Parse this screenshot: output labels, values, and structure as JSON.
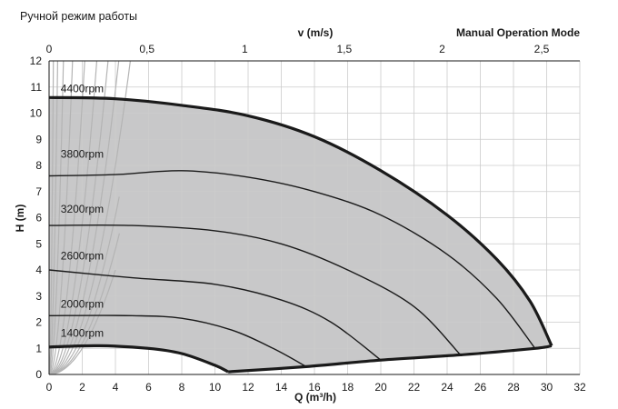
{
  "page": {
    "caption_ru": "Ручной режим работы",
    "caption_en": "Manual Operation Mode"
  },
  "chart_data": {
    "type": "line",
    "xlabel": "Q (m³/h)",
    "ylabel": "H (m)",
    "top_axis_label": "v (m/s)",
    "xlim": [
      0,
      32
    ],
    "ylim": [
      0,
      12
    ],
    "x_ticks": [
      "0",
      "2",
      "4",
      "6",
      "8",
      "10",
      "12",
      "14",
      "16",
      "18",
      "20",
      "22",
      "24",
      "26",
      "28",
      "30",
      "32"
    ],
    "y_ticks": [
      "0",
      "1",
      "2",
      "3",
      "4",
      "5",
      "6",
      "7",
      "8",
      "9",
      "10",
      "11",
      "12"
    ],
    "top_ticks": [
      {
        "label": "0",
        "q": 0
      },
      {
        "label": "0,5",
        "q": 5.9
      },
      {
        "label": "1",
        "q": 11.8
      },
      {
        "label": "1,5",
        "q": 17.8
      },
      {
        "label": "2",
        "q": 23.7
      },
      {
        "label": "2,5",
        "q": 29.7
      }
    ],
    "grid": true,
    "colors": {
      "envelope_fill": "#c8c8c9",
      "curve": "#1a1a1a",
      "system_curve": "#b4b4b4",
      "grid": "#cccccc"
    },
    "series": [
      {
        "name": "4400rpm",
        "label_at": [
          0.7,
          10.8
        ],
        "points": [
          [
            0,
            10.6
          ],
          [
            4,
            10.55
          ],
          [
            8,
            10.3
          ],
          [
            12,
            9.9
          ],
          [
            16,
            9.1
          ],
          [
            20,
            7.8
          ],
          [
            24,
            6.1
          ],
          [
            27,
            4.4
          ],
          [
            29,
            2.8
          ],
          [
            30.3,
            1.1
          ]
        ]
      },
      {
        "name": "3800rpm",
        "label_at": [
          0.7,
          8.3
        ],
        "points": [
          [
            0,
            7.6
          ],
          [
            4,
            7.65
          ],
          [
            8,
            7.8
          ],
          [
            12,
            7.55
          ],
          [
            16,
            7.0
          ],
          [
            20,
            6.1
          ],
          [
            24,
            4.6
          ],
          [
            27,
            2.9
          ],
          [
            29.3,
            1.0
          ]
        ]
      },
      {
        "name": "3200rpm",
        "label_at": [
          0.7,
          6.2
        ],
        "points": [
          [
            0,
            5.7
          ],
          [
            5,
            5.7
          ],
          [
            10,
            5.5
          ],
          [
            14,
            5.0
          ],
          [
            18,
            4.0
          ],
          [
            22,
            2.6
          ],
          [
            24.8,
            0.75
          ]
        ]
      },
      {
        "name": "2600rpm",
        "label_at": [
          0.7,
          4.4
        ],
        "points": [
          [
            0,
            4.0
          ],
          [
            5,
            3.7
          ],
          [
            10,
            3.45
          ],
          [
            14,
            2.85
          ],
          [
            17,
            2.0
          ],
          [
            20,
            0.55
          ]
        ]
      },
      {
        "name": "2000rpm",
        "label_at": [
          0.7,
          2.55
        ],
        "points": [
          [
            0,
            2.25
          ],
          [
            5,
            2.25
          ],
          [
            8,
            2.15
          ],
          [
            11,
            1.7
          ],
          [
            13.5,
            1.0
          ],
          [
            15.5,
            0.3
          ]
        ]
      },
      {
        "name": "1400rpm",
        "label_at": [
          0.7,
          1.45
        ],
        "points": [
          [
            0,
            1.05
          ],
          [
            3,
            1.1
          ],
          [
            6,
            1.0
          ],
          [
            8,
            0.8
          ],
          [
            10,
            0.35
          ],
          [
            10.8,
            0.1
          ]
        ]
      }
    ],
    "min_curve": [
      [
        10.8,
        0.1
      ],
      [
        15.5,
        0.3
      ],
      [
        20,
        0.55
      ],
      [
        24.8,
        0.75
      ],
      [
        29.3,
        1.0
      ],
      [
        30.3,
        1.1
      ]
    ],
    "system_curves_k": [
      0.25,
      0.3,
      0.38,
      0.5,
      0.68,
      0.95,
      1.45,
      2.6,
      6.0,
      16,
      45,
      180
    ],
    "system_curves_y_max": [
      4.0,
      5.4,
      6.8,
      12,
      12,
      12,
      12,
      12,
      12,
      12,
      12,
      12
    ]
  }
}
